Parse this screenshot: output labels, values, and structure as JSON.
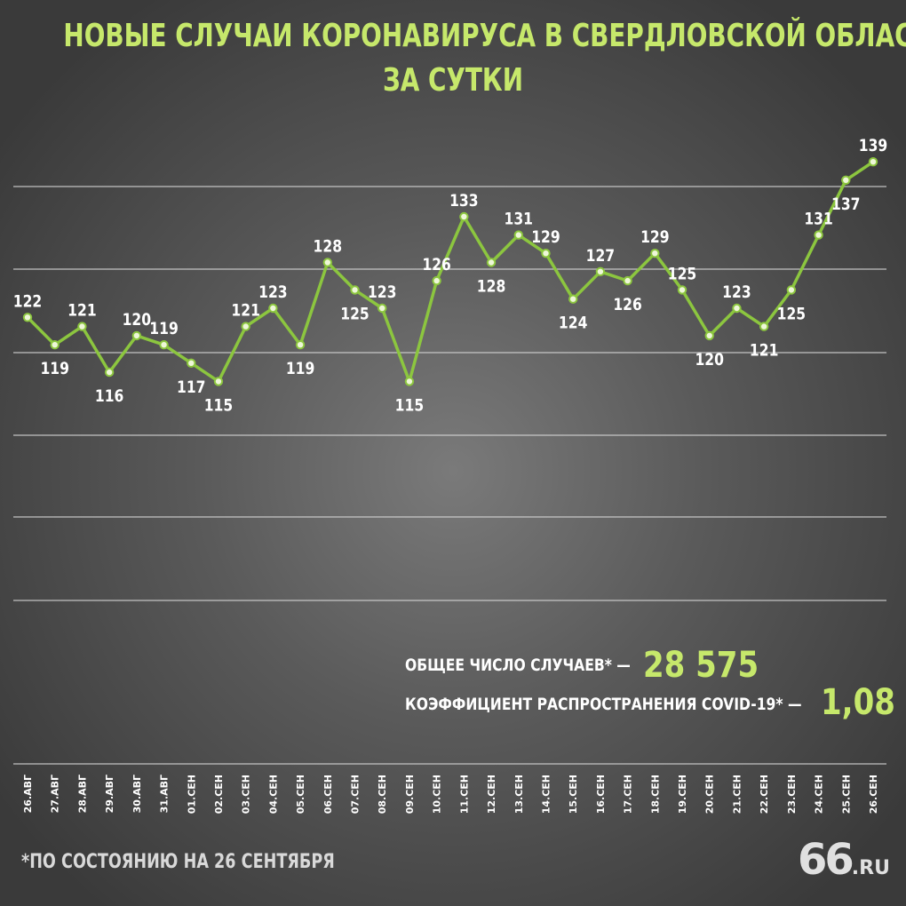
{
  "header": {
    "title_line1": "НОВЫЕ СЛУЧАИ КОРОНАВИРУСА В СВЕРДЛОВСКОЙ ОБЛАСТИ",
    "title_line2": "ЗА СУТКИ"
  },
  "summary": {
    "total_label": "ОБЩЕЕ ЧИСЛО СЛУЧАЕВ* —",
    "total_value": "28 575",
    "rate_label": "КОЭФФИЦИЕНТ РАСПРОСТРАНЕНИЯ COVID-19* —",
    "rate_value": "1,08"
  },
  "footer": {
    "footnote": "*ПО СОСТОЯНИЮ НА 26 СЕНТЯБРЯ",
    "logo_number": "66",
    "logo_suffix": ".RU"
  },
  "colors": {
    "accent": "#c6e86b",
    "line": "#8cc63f",
    "text": "#ffffff",
    "grid": "#d8d8d8"
  },
  "chart_data": {
    "type": "line",
    "title": "НОВЫЕ СЛУЧАИ КОРОНАВИРУСА В СВЕРДЛОВСКОЙ ОБЛАСТИ ЗА СУТКИ",
    "xlabel": "",
    "ylabel": "",
    "grid": true,
    "categories": [
      "26.АВГ",
      "27.АВГ",
      "28.АВГ",
      "29.АВГ",
      "30.АВГ",
      "31.АВГ",
      "01.СЕН",
      "02.СЕН",
      "03.СЕН",
      "04.СЕН",
      "05.СЕН",
      "06.СЕН",
      "07.СЕН",
      "08.СЕН",
      "09.СЕН",
      "10.СЕН",
      "11.СЕН",
      "12.СЕН",
      "13.СЕН",
      "14.СЕН",
      "15.СЕН",
      "16.СЕН",
      "17.СЕН",
      "18.СЕН",
      "19.СЕН",
      "20.СЕН",
      "21.СЕН",
      "22.СЕН",
      "23.СЕН",
      "24.СЕН",
      "25.СЕН",
      "26.СЕН"
    ],
    "values": [
      122,
      119,
      121,
      116,
      120,
      119,
      117,
      115,
      121,
      123,
      119,
      128,
      125,
      123,
      115,
      126,
      133,
      128,
      131,
      129,
      124,
      127,
      126,
      129,
      125,
      120,
      123,
      121,
      125,
      131,
      137,
      139
    ],
    "label_position": [
      "above",
      "below",
      "above",
      "below",
      "above",
      "above",
      "below",
      "below",
      "above",
      "above",
      "below",
      "above",
      "below",
      "above",
      "below",
      "above",
      "above",
      "below",
      "above",
      "above",
      "below",
      "above",
      "below",
      "above",
      "above",
      "below",
      "above",
      "below",
      "below",
      "above",
      "below",
      "above"
    ]
  }
}
